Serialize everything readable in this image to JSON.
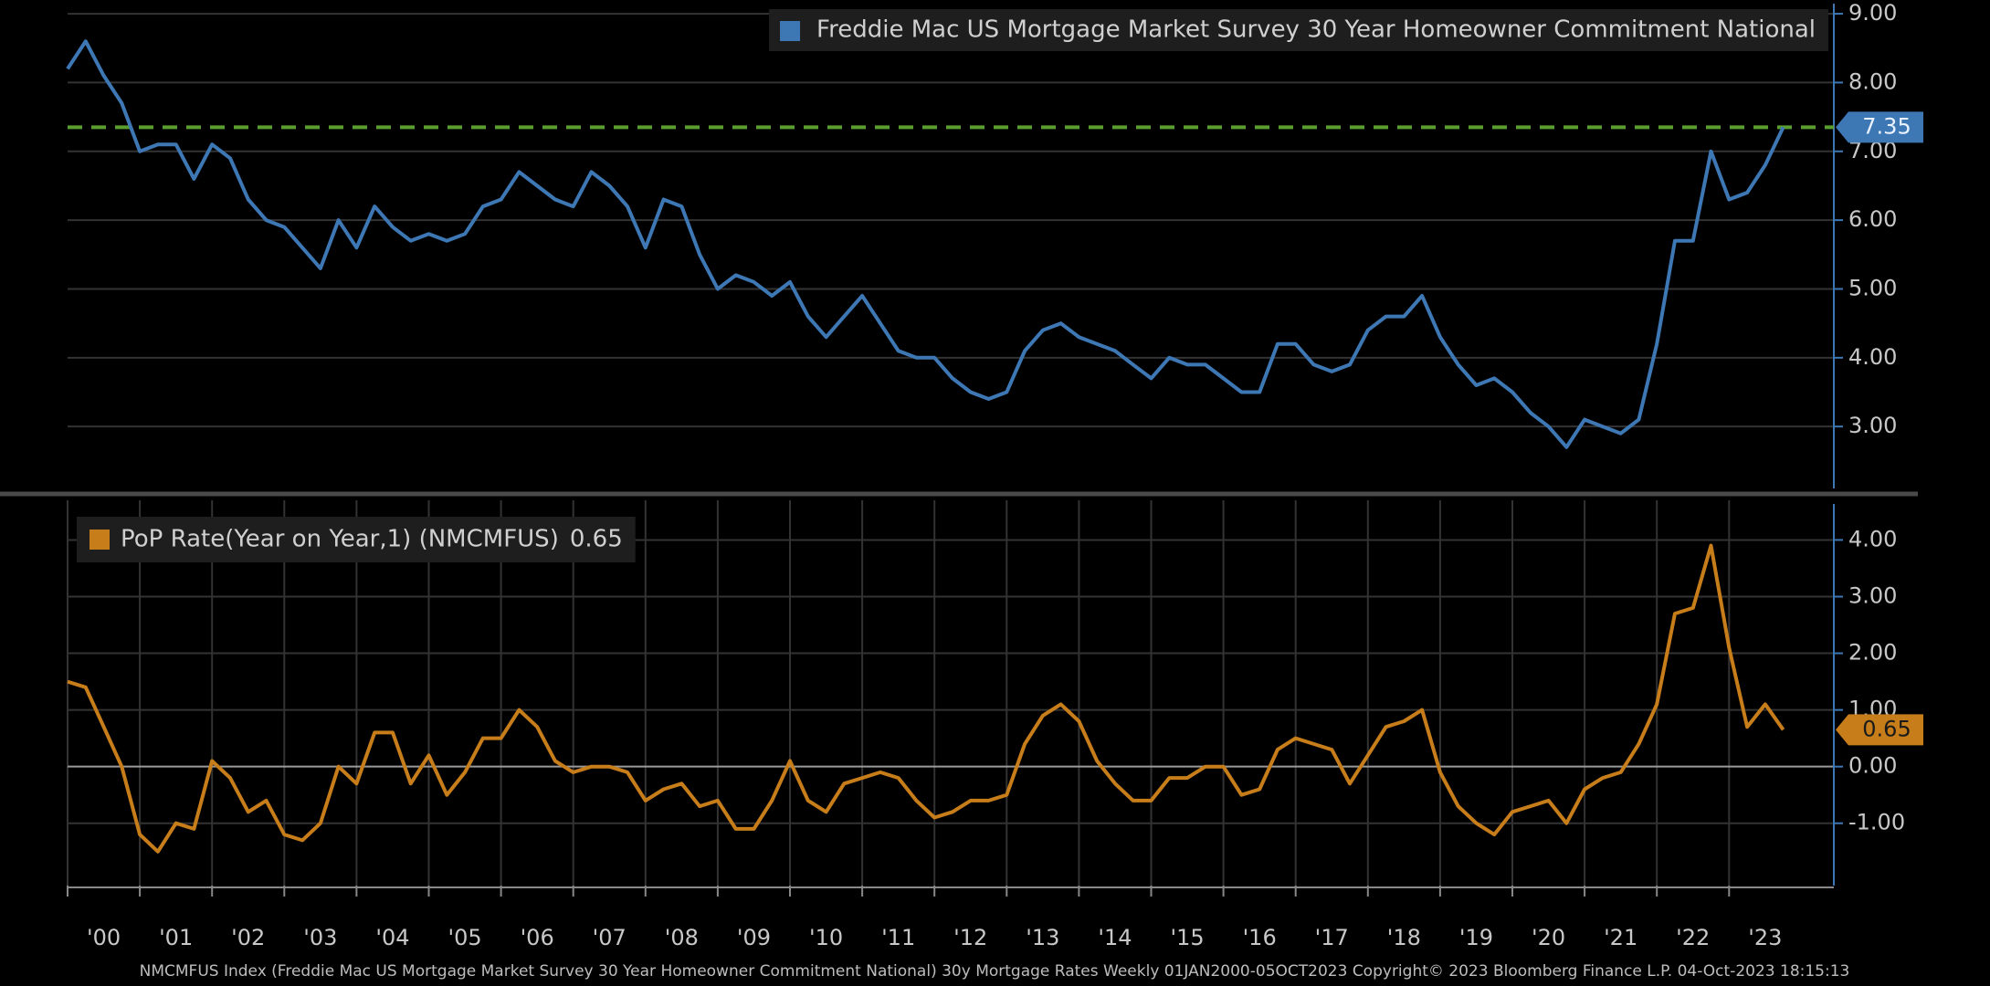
{
  "chart_data": [
    {
      "type": "line",
      "legend_position": "top-right",
      "series": [
        {
          "name": "Freddie Mac US Mortgage Market Survey 30 Year Homeowner Commitment National",
          "color": "#3d78b5",
          "x": [
            2000,
            2000.25,
            2000.5,
            2000.75,
            2001,
            2001.25,
            2001.5,
            2001.75,
            2002,
            2002.25,
            2002.5,
            2002.75,
            2003,
            2003.25,
            2003.5,
            2003.75,
            2004,
            2004.25,
            2004.5,
            2004.75,
            2005,
            2005.25,
            2005.5,
            2005.75,
            2006,
            2006.25,
            2006.5,
            2006.75,
            2007,
            2007.25,
            2007.5,
            2007.75,
            2008,
            2008.25,
            2008.5,
            2008.75,
            2009,
            2009.25,
            2009.5,
            2009.75,
            2010,
            2010.25,
            2010.5,
            2010.75,
            2011,
            2011.25,
            2011.5,
            2011.75,
            2012,
            2012.25,
            2012.5,
            2012.75,
            2013,
            2013.25,
            2013.5,
            2013.75,
            2014,
            2014.25,
            2014.5,
            2014.75,
            2015,
            2015.25,
            2015.5,
            2015.75,
            2016,
            2016.25,
            2016.5,
            2016.75,
            2017,
            2017.25,
            2017.5,
            2017.75,
            2018,
            2018.25,
            2018.5,
            2018.75,
            2019,
            2019.25,
            2019.5,
            2019.75,
            2020,
            2020.25,
            2020.5,
            2020.75,
            2021,
            2021.25,
            2021.5,
            2021.75,
            2022,
            2022.25,
            2022.5,
            2022.75,
            2023,
            2023.25,
            2023.5,
            2023.75
          ],
          "values": [
            8.2,
            8.6,
            8.1,
            7.7,
            7.0,
            7.1,
            7.1,
            6.6,
            7.1,
            6.9,
            6.3,
            6.0,
            5.9,
            5.6,
            5.3,
            6.0,
            5.6,
            6.2,
            5.9,
            5.7,
            5.8,
            5.7,
            5.8,
            6.2,
            6.3,
            6.7,
            6.5,
            6.3,
            6.2,
            6.7,
            6.5,
            6.2,
            5.6,
            6.3,
            6.2,
            5.5,
            5.0,
            5.2,
            5.1,
            4.9,
            5.1,
            4.6,
            4.3,
            4.6,
            4.9,
            4.5,
            4.1,
            4.0,
            4.0,
            3.7,
            3.5,
            3.4,
            3.5,
            4.1,
            4.4,
            4.5,
            4.3,
            4.2,
            4.1,
            3.9,
            3.7,
            4.0,
            3.9,
            3.9,
            3.7,
            3.5,
            3.5,
            4.2,
            4.2,
            3.9,
            3.8,
            3.9,
            4.4,
            4.6,
            4.6,
            4.9,
            4.3,
            3.9,
            3.6,
            3.7,
            3.5,
            3.2,
            3.0,
            2.7,
            3.1,
            3.0,
            2.9,
            3.1,
            4.2,
            5.7,
            5.7,
            7.0,
            6.3,
            6.4,
            6.8,
            7.35
          ]
        }
      ],
      "last_value": 7.35,
      "reference_line": {
        "value": 7.35,
        "color": "#5a9e2f"
      },
      "xlim": [
        2000,
        2024.45
      ],
      "ylim": [
        2.1,
        9.2
      ],
      "yticks": [
        {
          "value": 9,
          "label": "9.00"
        },
        {
          "value": 8,
          "label": "8.00"
        },
        {
          "value": 7,
          "label": "7.00"
        },
        {
          "value": 6,
          "label": "6.00"
        },
        {
          "value": 5,
          "label": "5.00"
        },
        {
          "value": 4,
          "label": "4.00"
        },
        {
          "value": 3,
          "label": "3.00"
        }
      ],
      "grid": true
    },
    {
      "type": "line",
      "legend_position": "top-left",
      "series": [
        {
          "name": "PoP Rate(Year on Year,1) (NMCMFUS)",
          "color": "#c77d1a",
          "x": [
            2000,
            2000.25,
            2000.5,
            2000.75,
            2001,
            2001.25,
            2001.5,
            2001.75,
            2002,
            2002.25,
            2002.5,
            2002.75,
            2003,
            2003.25,
            2003.5,
            2003.75,
            2004,
            2004.25,
            2004.5,
            2004.75,
            2005,
            2005.25,
            2005.5,
            2005.75,
            2006,
            2006.25,
            2006.5,
            2006.75,
            2007,
            2007.25,
            2007.5,
            2007.75,
            2008,
            2008.25,
            2008.5,
            2008.75,
            2009,
            2009.25,
            2009.5,
            2009.75,
            2010,
            2010.25,
            2010.5,
            2010.75,
            2011,
            2011.25,
            2011.5,
            2011.75,
            2012,
            2012.25,
            2012.5,
            2012.75,
            2013,
            2013.25,
            2013.5,
            2013.75,
            2014,
            2014.25,
            2014.5,
            2014.75,
            2015,
            2015.25,
            2015.5,
            2015.75,
            2016,
            2016.25,
            2016.5,
            2016.75,
            2017,
            2017.25,
            2017.5,
            2017.75,
            2018,
            2018.25,
            2018.5,
            2018.75,
            2019,
            2019.25,
            2019.5,
            2019.75,
            2020,
            2020.25,
            2020.5,
            2020.75,
            2021,
            2021.25,
            2021.5,
            2021.75,
            2022,
            2022.25,
            2022.5,
            2022.75,
            2023,
            2023.25,
            2023.5,
            2023.75
          ],
          "values": [
            1.5,
            1.4,
            0.7,
            0.0,
            -1.2,
            -1.5,
            -1.0,
            -1.1,
            0.1,
            -0.2,
            -0.8,
            -0.6,
            -1.2,
            -1.3,
            -1.0,
            0.0,
            -0.3,
            0.6,
            0.6,
            -0.3,
            0.2,
            -0.5,
            -0.1,
            0.5,
            0.5,
            1.0,
            0.7,
            0.1,
            -0.1,
            0.0,
            0.0,
            -0.1,
            -0.6,
            -0.4,
            -0.3,
            -0.7,
            -0.6,
            -1.1,
            -1.1,
            -0.6,
            0.1,
            -0.6,
            -0.8,
            -0.3,
            -0.2,
            -0.1,
            -0.2,
            -0.6,
            -0.9,
            -0.8,
            -0.6,
            -0.6,
            -0.5,
            0.4,
            0.9,
            1.1,
            0.8,
            0.1,
            -0.3,
            -0.6,
            -0.6,
            -0.2,
            -0.2,
            0.0,
            0.0,
            -0.5,
            -0.4,
            0.3,
            0.5,
            0.4,
            0.3,
            -0.3,
            0.2,
            0.7,
            0.8,
            1.0,
            -0.1,
            -0.7,
            -1.0,
            -1.2,
            -0.8,
            -0.7,
            -0.6,
            -1.0,
            -0.4,
            -0.2,
            -0.1,
            0.4,
            1.1,
            2.7,
            2.8,
            3.9,
            2.1,
            0.7,
            1.1,
            0.65
          ]
        }
      ],
      "last_value": 0.65,
      "xlim": [
        2000,
        2024.45
      ],
      "ylim": [
        -2.1,
        4.7
      ],
      "yticks": [
        {
          "value": 4,
          "label": "4.00"
        },
        {
          "value": 3,
          "label": "3.00"
        },
        {
          "value": 2,
          "label": "2.00"
        },
        {
          "value": 1,
          "label": "1.00"
        },
        {
          "value": 0,
          "label": "0.00"
        },
        {
          "value": -1,
          "label": "-1.00"
        }
      ],
      "xticks": [
        {
          "value": 2000,
          "label": "'00"
        },
        {
          "value": 2001,
          "label": "'01"
        },
        {
          "value": 2002,
          "label": "'02"
        },
        {
          "value": 2003,
          "label": "'03"
        },
        {
          "value": 2004,
          "label": "'04"
        },
        {
          "value": 2005,
          "label": "'05"
        },
        {
          "value": 2006,
          "label": "'06"
        },
        {
          "value": 2007,
          "label": "'07"
        },
        {
          "value": 2008,
          "label": "'08"
        },
        {
          "value": 2009,
          "label": "'09"
        },
        {
          "value": 2010,
          "label": "'10"
        },
        {
          "value": 2011,
          "label": "'11"
        },
        {
          "value": 2012,
          "label": "'12"
        },
        {
          "value": 2013,
          "label": "'13"
        },
        {
          "value": 2014,
          "label": "'14"
        },
        {
          "value": 2015,
          "label": "'15"
        },
        {
          "value": 2016,
          "label": "'16"
        },
        {
          "value": 2017,
          "label": "'17"
        },
        {
          "value": 2018,
          "label": "'18"
        },
        {
          "value": 2019,
          "label": "'19"
        },
        {
          "value": 2020,
          "label": "'20"
        },
        {
          "value": 2021,
          "label": "'21"
        },
        {
          "value": 2022,
          "label": "'22"
        },
        {
          "value": 2023,
          "label": "'23"
        }
      ],
      "grid": true
    }
  ],
  "footer": "NMCMFUS Index (Freddie Mac US Mortgage Market Survey 30 Year Homeowner Commitment National) 30y Mortgage Rates  Weekly 01JAN2000-05OCT2023 Copyright© 2023 Bloomberg Finance L.P.  04-Oct-2023 18:15:13"
}
